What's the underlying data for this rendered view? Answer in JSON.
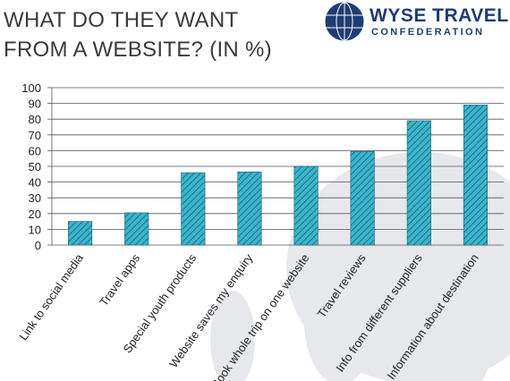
{
  "chart_data": {
    "type": "bar",
    "title": "WHAT DO THEY WANT FROM A WEBSITE? (IN %)",
    "categories": [
      "Link to social media",
      "Travel apps",
      "Special youth products",
      "Website saves my enquiry",
      "Book whole trip on one website",
      "Travel reviews",
      "Info from different suppliers",
      "Information about destination"
    ],
    "values": [
      15,
      20.5,
      46,
      46.5,
      50,
      59.5,
      79,
      89
    ],
    "color": "#3ab4cc",
    "ylim": [
      0,
      100
    ],
    "yticks": [
      0,
      10,
      20,
      30,
      40,
      50,
      60,
      70,
      80,
      90,
      100
    ],
    "grid": true
  },
  "logo": {
    "name": "WYSE TRAVEL",
    "subtitle": "CONFEDERATION"
  }
}
